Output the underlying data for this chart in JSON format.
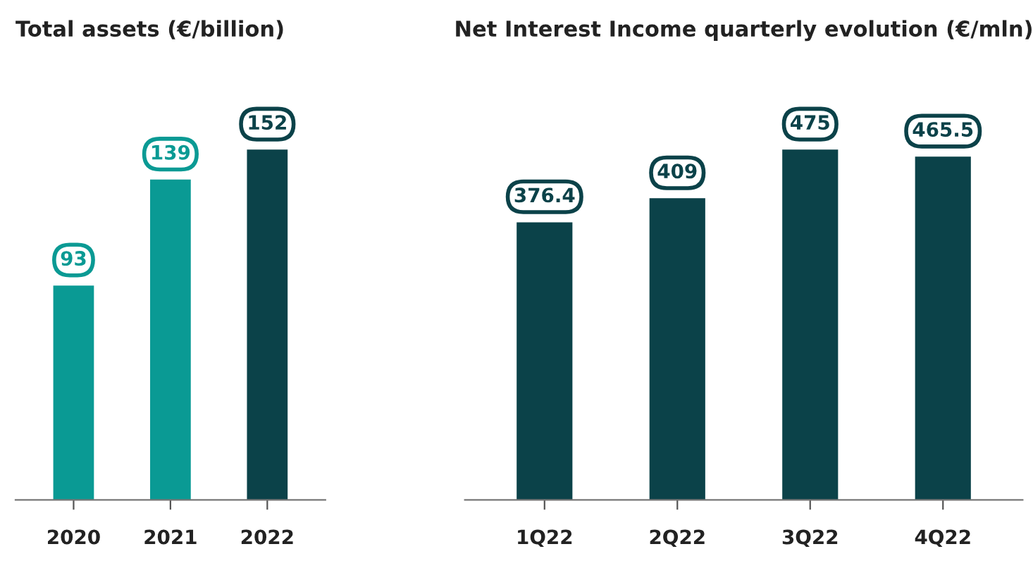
{
  "chart_data": [
    {
      "type": "bar",
      "title": "Total assets (€/billion)",
      "categories": [
        "2020",
        "2021",
        "2022"
      ],
      "values": [
        93,
        139,
        152
      ],
      "colors": [
        "#0a9a94",
        "#0a9a94",
        "#0b4249"
      ],
      "data_labels": true
    },
    {
      "type": "bar",
      "title": "Net Interest Income quarterly evolution (€/mln)",
      "categories": [
        "1Q22",
        "2Q22",
        "3Q22",
        "4Q22"
      ],
      "values": [
        376.4,
        409,
        475,
        465.5
      ],
      "colors": [
        "#0b4249",
        "#0b4249",
        "#0b4249",
        "#0b4249"
      ],
      "data_labels": true
    }
  ]
}
